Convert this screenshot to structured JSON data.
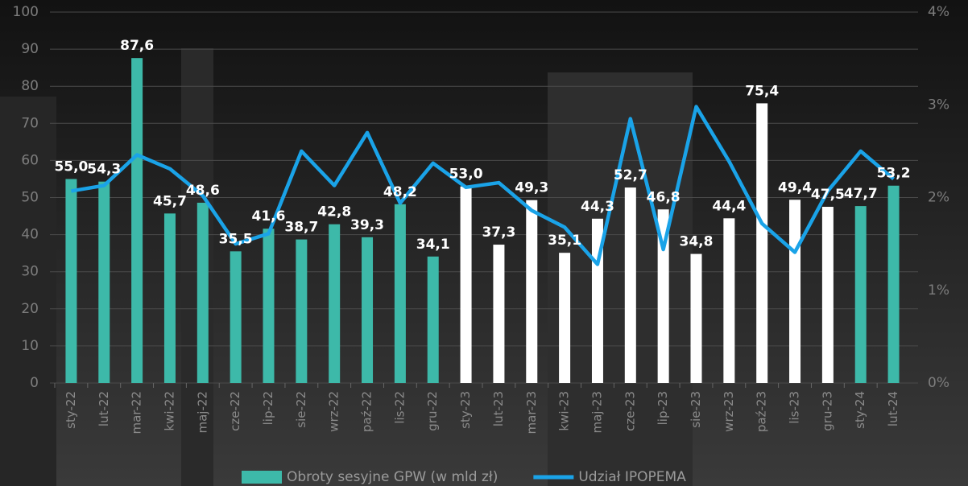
{
  "chart_data": {
    "type": "bar-line",
    "categories": [
      "sty-22",
      "lut-22",
      "mar-22",
      "kwi-22",
      "maj-22",
      "cze-22",
      "lip-22",
      "sie-22",
      "wrz-22",
      "paź-22",
      "lis-22",
      "gru-22",
      "sty-23",
      "lut-23",
      "mar-23",
      "kwi-23",
      "maj-23",
      "cze-23",
      "lip-23",
      "sie-23",
      "wrz-23",
      "paź-23",
      "lis-23",
      "gru-23",
      "sty-24",
      "lut-24"
    ],
    "series": [
      {
        "name": "Obroty sesyjne GPW (w mld zł)",
        "type": "bar",
        "color": "#3db9a9",
        "colors": [
          "#3db9a9",
          "#3db9a9",
          "#3db9a9",
          "#3db9a9",
          "#3db9a9",
          "#3db9a9",
          "#3db9a9",
          "#3db9a9",
          "#3db9a9",
          "#3db9a9",
          "#3db9a9",
          "#3db9a9",
          "#ffffff",
          "#ffffff",
          "#ffffff",
          "#ffffff",
          "#ffffff",
          "#ffffff",
          "#ffffff",
          "#ffffff",
          "#ffffff",
          "#ffffff",
          "#ffffff",
          "#ffffff",
          "#3db9a9",
          "#3db9a9"
        ],
        "values": [
          55.0,
          54.3,
          87.6,
          45.7,
          48.6,
          35.5,
          41.6,
          38.7,
          42.8,
          39.3,
          48.2,
          34.1,
          53.0,
          37.3,
          49.3,
          35.1,
          44.3,
          52.7,
          46.8,
          34.8,
          44.4,
          75.4,
          49.4,
          47.5,
          47.7,
          53.2
        ],
        "value_labels": [
          "55,0",
          "54,3",
          "87,6",
          "45,7",
          "48,6",
          "35,5",
          "41,6",
          "38,7",
          "42,8",
          "39,3",
          "48,2",
          "34,1",
          "53,0",
          "37,3",
          "49,3",
          "35,1",
          "44,3",
          "52,7",
          "46,8",
          "34,8",
          "44,4",
          "75,4",
          "49,4",
          "47,5",
          "47,7",
          "53,2"
        ]
      },
      {
        "name": "Udział IPOPEMA",
        "type": "line",
        "axis": "y2",
        "color": "#1aa3e8",
        "values": [
          2.07,
          2.13,
          2.46,
          2.31,
          2.02,
          1.5,
          1.61,
          2.5,
          2.13,
          2.7,
          1.94,
          2.37,
          2.11,
          2.16,
          1.86,
          1.68,
          1.28,
          2.85,
          1.44,
          2.98,
          2.39,
          1.72,
          1.41,
          2.07,
          2.5,
          2.2
        ]
      }
    ],
    "ylim": [
      0,
      100
    ],
    "yticks": [
      0,
      10,
      20,
      30,
      40,
      50,
      60,
      70,
      80,
      90,
      100
    ],
    "y2lim": [
      0,
      4
    ],
    "y2ticks": [
      {
        "value": 0,
        "label": "0%"
      },
      {
        "value": 1,
        "label": "1%"
      },
      {
        "value": 2,
        "label": "2%"
      },
      {
        "value": 3,
        "label": "3%"
      },
      {
        "value": 4,
        "label": "4%"
      }
    ],
    "grid": true
  }
}
